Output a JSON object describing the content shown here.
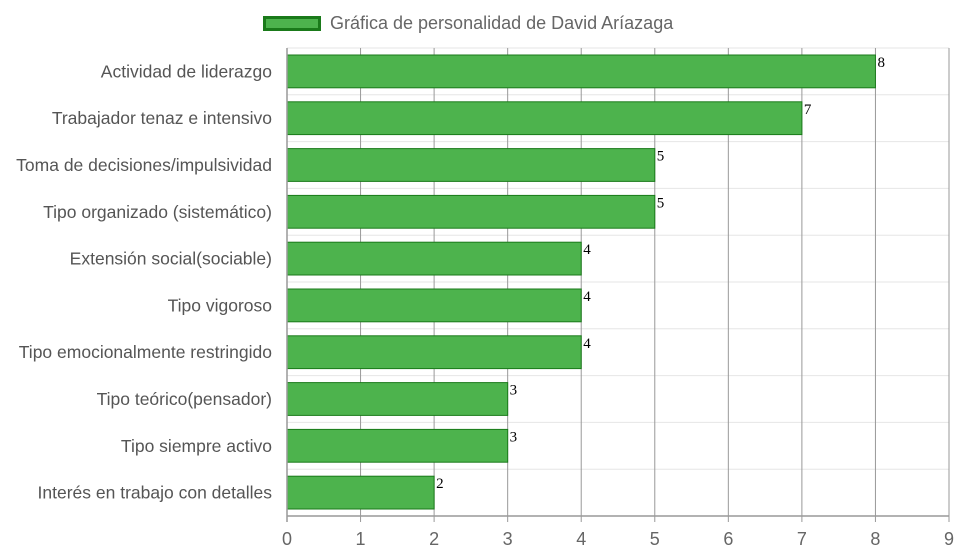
{
  "colors": {
    "bar_fill": "#4db34d",
    "bar_border": "#1a7a1a",
    "grid_vertical": "#999999",
    "grid_horizontal": "#e6e6e6",
    "axis": "#999999"
  },
  "chart_data": {
    "type": "bar",
    "orientation": "horizontal",
    "legend_position": "top",
    "grid": true,
    "xlim": [
      0,
      9
    ],
    "x_ticks": [
      "0",
      "1",
      "2",
      "3",
      "4",
      "5",
      "6",
      "7",
      "8",
      "9"
    ],
    "categories": [
      "Actividad de liderazgo",
      "Trabajador tenaz e intensivo",
      "Toma de decisiones/impulsividad",
      "Tipo organizado (sistemático)",
      "Extensión social(sociable)",
      "Tipo vigoroso",
      "Tipo emocionalmente restringido",
      "Tipo teórico(pensador)",
      "Tipo siempre activo",
      "Interés en trabajo con detalles"
    ],
    "series": [
      {
        "name": "Gráfica de personalidad de David Aríazaga",
        "values": [
          8,
          7,
          5,
          5,
          4,
          4,
          4,
          3,
          3,
          2
        ]
      }
    ]
  }
}
